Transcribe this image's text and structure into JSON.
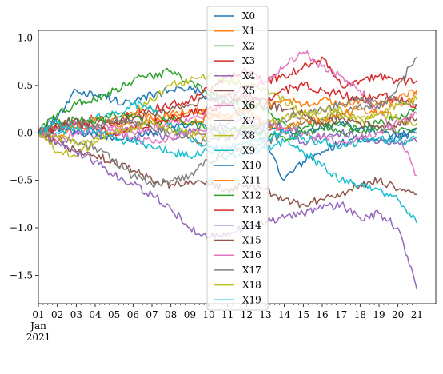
{
  "chart_data": {
    "type": "line",
    "title": "",
    "xlabel": "",
    "ylabel": "",
    "x": [
      "01",
      "02",
      "03",
      "04",
      "05",
      "06",
      "07",
      "08",
      "09",
      "10",
      "11",
      "12",
      "13",
      "14",
      "15",
      "16",
      "17",
      "18",
      "19",
      "20",
      "21"
    ],
    "x_sublabel": {
      "month": "Jan",
      "year": "2021"
    },
    "xlim": [
      1,
      22
    ],
    "ylim": [
      -1.8,
      1.08
    ],
    "yticks": [
      {
        "value": 1.0,
        "label": "1.0"
      },
      {
        "value": 0.5,
        "label": "0.5"
      },
      {
        "value": 0.0,
        "label": "0.0"
      },
      {
        "value": -0.5,
        "label": "−0.5"
      },
      {
        "value": -1.0,
        "label": "−1.0"
      },
      {
        "value": -1.5,
        "label": "−1.5"
      }
    ],
    "grid": false,
    "legend_placement": "upper-center",
    "series": [
      {
        "name": "X0",
        "color": "#1f77b4",
        "values": [
          0.0,
          0.15,
          0.45,
          0.4,
          0.35,
          0.3,
          0.4,
          0.45,
          0.5,
          0.35,
          0.3,
          0.15,
          -0.1,
          -0.5,
          -0.3,
          -0.2,
          -0.1,
          -0.05,
          -0.1,
          -0.05,
          0.0
        ]
      },
      {
        "name": "X1",
        "color": "#ff7f0e",
        "values": [
          0.0,
          -0.1,
          0.1,
          0.05,
          0.15,
          0.2,
          0.15,
          0.2,
          0.25,
          0.2,
          0.15,
          0.25,
          0.3,
          0.35,
          0.3,
          0.35,
          0.3,
          0.35,
          0.3,
          0.35,
          0.45
        ]
      },
      {
        "name": "X2",
        "color": "#2ca02c",
        "values": [
          0.0,
          0.2,
          0.3,
          0.35,
          0.45,
          0.55,
          0.6,
          0.65,
          0.55,
          0.4,
          0.35,
          0.3,
          0.25,
          0.1,
          0.05,
          0.1,
          0.0,
          0.05,
          0.1,
          0.15,
          0.25
        ]
      },
      {
        "name": "X3",
        "color": "#d62728",
        "values": [
          0.0,
          0.05,
          0.1,
          0.15,
          0.1,
          0.2,
          0.25,
          0.3,
          0.35,
          0.45,
          0.6,
          0.65,
          0.55,
          0.6,
          0.7,
          0.8,
          0.5,
          0.55,
          0.6,
          0.55,
          0.55
        ]
      },
      {
        "name": "X4",
        "color": "#9467bd",
        "values": [
          0.0,
          0.05,
          0.0,
          -0.05,
          0.0,
          0.05,
          0.0,
          -0.05,
          0.05,
          0.0,
          -0.05,
          0.0,
          0.05,
          0.0,
          -0.1,
          -0.05,
          0.0,
          -0.05,
          -0.1,
          -0.1,
          -0.1
        ]
      },
      {
        "name": "X5",
        "color": "#8c564b",
        "values": [
          0.0,
          -0.1,
          -0.2,
          -0.25,
          -0.3,
          -0.4,
          -0.5,
          -0.55,
          -0.5,
          -0.55,
          -0.6,
          -0.55,
          -0.6,
          -0.7,
          -0.75,
          -0.7,
          -0.65,
          -0.55,
          -0.5,
          -0.6,
          -0.65
        ]
      },
      {
        "name": "X6",
        "color": "#e377c2",
        "values": [
          0.0,
          0.05,
          0.1,
          0.05,
          0.1,
          0.0,
          0.05,
          0.1,
          0.15,
          0.2,
          0.4,
          0.5,
          0.55,
          0.7,
          0.85,
          0.7,
          0.6,
          0.45,
          0.2,
          0.0,
          -0.45
        ]
      },
      {
        "name": "X7",
        "color": "#7f7f7f",
        "values": [
          0.0,
          -0.05,
          -0.1,
          -0.15,
          -0.3,
          -0.45,
          -0.55,
          -0.5,
          -0.45,
          -0.3,
          -0.2,
          -0.15,
          -0.1,
          0.0,
          0.1,
          0.15,
          0.2,
          0.3,
          0.25,
          0.5,
          0.8
        ]
      },
      {
        "name": "X8",
        "color": "#bcbd22",
        "values": [
          0.0,
          -0.2,
          -0.25,
          -0.1,
          0.0,
          0.2,
          0.35,
          0.5,
          0.55,
          0.6,
          0.55,
          0.5,
          0.45,
          0.35,
          0.2,
          0.15,
          0.25,
          0.1,
          0.2,
          0.15,
          0.1
        ]
      },
      {
        "name": "X9",
        "color": "#17becf",
        "values": [
          0.0,
          0.0,
          0.05,
          0.15,
          0.2,
          0.3,
          0.25,
          0.1,
          -0.05,
          -0.15,
          -0.25,
          -0.2,
          -0.15,
          -0.1,
          -0.2,
          -0.35,
          -0.5,
          -0.55,
          -0.6,
          -0.7,
          -0.95
        ]
      },
      {
        "name": "X10",
        "color": "#1f77b4",
        "values": [
          0.0,
          0.05,
          0.0,
          0.0,
          -0.05,
          -0.05,
          0.0,
          0.05,
          0.1,
          0.05,
          0.05,
          0.0,
          0.1,
          0.05,
          0.0,
          0.05,
          0.1,
          0.05,
          0.0,
          -0.05,
          0.05
        ]
      },
      {
        "name": "X11",
        "color": "#ff7f0e",
        "values": [
          0.0,
          0.1,
          0.05,
          0.15,
          0.1,
          0.05,
          0.15,
          0.2,
          0.1,
          0.15,
          0.2,
          0.25,
          0.1,
          0.05,
          0.15,
          0.1,
          0.2,
          0.25,
          0.2,
          0.3,
          0.4
        ]
      },
      {
        "name": "X12",
        "color": "#2ca02c",
        "values": [
          0.0,
          0.1,
          0.15,
          0.1,
          0.2,
          0.15,
          0.1,
          0.15,
          0.1,
          0.05,
          0.0,
          0.05,
          0.0,
          -0.05,
          0.0,
          0.05,
          0.1,
          0.0,
          0.05,
          0.0,
          0.05
        ]
      },
      {
        "name": "X13",
        "color": "#d62728",
        "values": [
          0.0,
          0.05,
          0.1,
          0.05,
          0.0,
          0.05,
          0.1,
          0.15,
          0.2,
          0.25,
          0.3,
          0.4,
          0.35,
          0.45,
          0.5,
          0.45,
          0.4,
          0.35,
          0.4,
          0.35,
          0.3
        ]
      },
      {
        "name": "X14",
        "color": "#9467bd",
        "values": [
          0.0,
          -0.1,
          -0.2,
          -0.3,
          -0.45,
          -0.55,
          -0.65,
          -0.8,
          -1.0,
          -1.1,
          -1.05,
          -1.0,
          -0.95,
          -0.9,
          -0.85,
          -0.8,
          -0.75,
          -0.9,
          -0.85,
          -1.0,
          -1.65
        ]
      },
      {
        "name": "X15",
        "color": "#8c564b",
        "values": [
          0.0,
          0.1,
          0.15,
          0.05,
          0.1,
          0.15,
          0.2,
          0.25,
          0.3,
          0.35,
          0.4,
          0.35,
          0.3,
          0.25,
          0.2,
          0.1,
          0.15,
          0.1,
          0.05,
          0.1,
          0.15
        ]
      },
      {
        "name": "X16",
        "color": "#e377c2",
        "values": [
          0.0,
          -0.05,
          0.0,
          0.05,
          0.0,
          -0.05,
          -0.1,
          -0.05,
          0.0,
          0.05,
          0.1,
          0.15,
          0.1,
          0.05,
          0.0,
          -0.05,
          -0.1,
          -0.05,
          0.0,
          0.1,
          0.2
        ]
      },
      {
        "name": "X17",
        "color": "#7f7f7f",
        "values": [
          0.0,
          0.05,
          0.1,
          0.05,
          0.15,
          0.1,
          0.05,
          0.0,
          -0.05,
          -0.1,
          -0.05,
          0.0,
          0.1,
          0.15,
          0.2,
          0.25,
          0.3,
          0.35,
          0.3,
          0.35,
          0.3
        ]
      },
      {
        "name": "X18",
        "color": "#bcbd22",
        "values": [
          0.0,
          -0.05,
          -0.1,
          -0.05,
          0.0,
          0.05,
          0.1,
          0.05,
          0.0,
          -0.05,
          0.0,
          0.05,
          0.1,
          0.15,
          0.2,
          0.25,
          0.2,
          0.15,
          0.2,
          0.3,
          0.35
        ]
      },
      {
        "name": "X19",
        "color": "#17becf",
        "values": [
          0.0,
          0.1,
          0.05,
          0.0,
          -0.05,
          -0.1,
          -0.15,
          -0.2,
          -0.25,
          -0.2,
          -0.15,
          -0.1,
          -0.05,
          0.0,
          -0.05,
          -0.1,
          -0.15,
          -0.1,
          -0.05,
          -0.1,
          -0.05
        ]
      }
    ]
  }
}
